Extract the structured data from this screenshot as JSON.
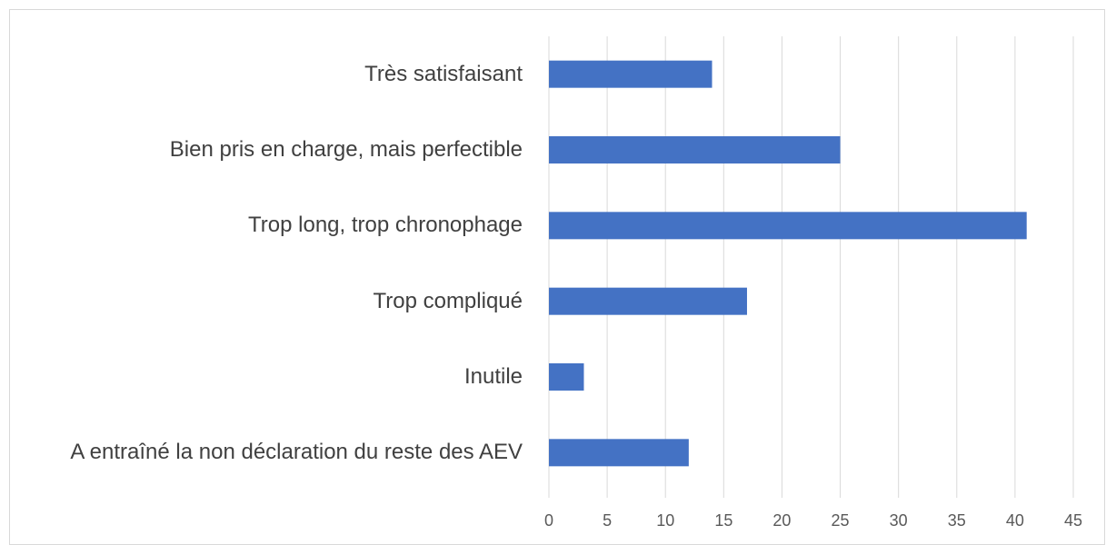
{
  "chart_data": {
    "type": "bar",
    "orientation": "horizontal",
    "categories": [
      "Très satisfaisant",
      "Bien pris en charge, mais perfectible",
      "Trop long, trop chronophage",
      "Trop compliqué",
      "Inutile",
      "A entraîné la non déclaration du reste des AEV"
    ],
    "values": [
      14,
      25,
      41,
      17,
      3,
      12
    ],
    "color": "#4472c4",
    "xlim": [
      0,
      45
    ],
    "xticks": [
      0,
      5,
      10,
      15,
      20,
      25,
      30,
      35,
      40,
      45
    ],
    "grid": true
  }
}
